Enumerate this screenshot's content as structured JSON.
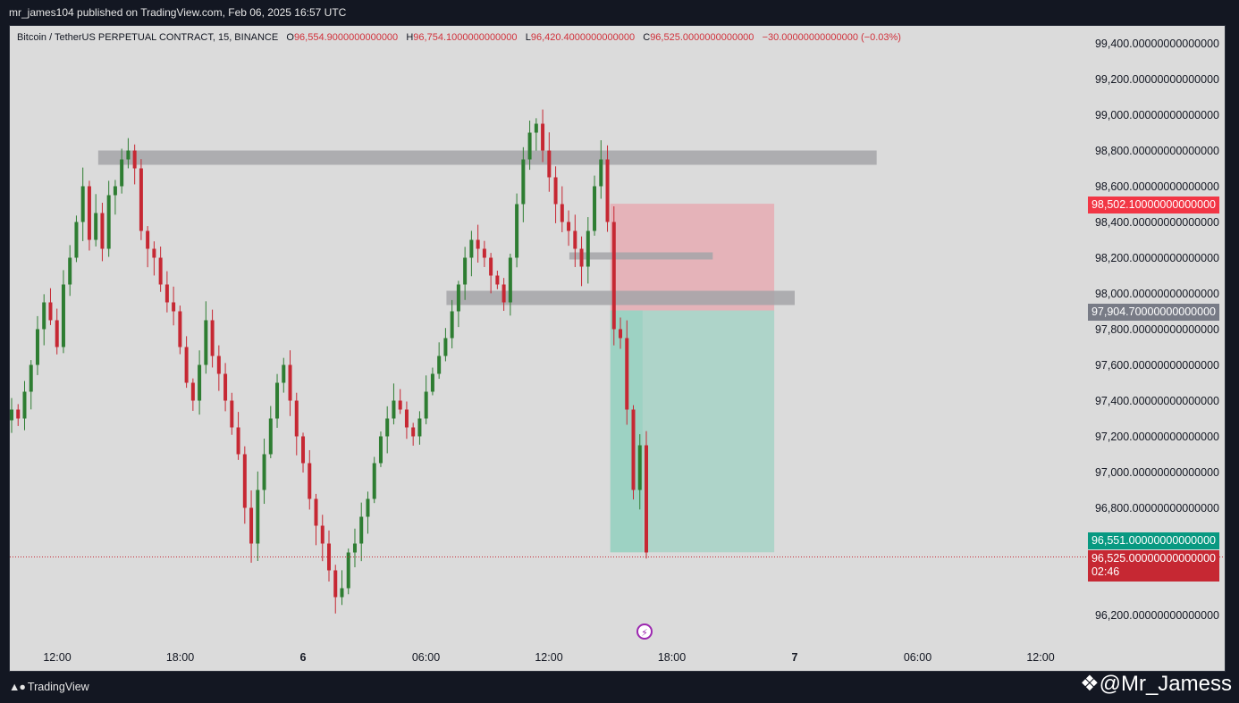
{
  "header": {
    "publish_line": "mr_james104 published on TradingView.com, Feb 06, 2025 16:57 UTC"
  },
  "legend": {
    "symbol": "Bitcoin / TetherUS PERPETUAL CONTRACT, 15, BINANCE",
    "o_label": "O",
    "o": "96,554.9000000000000",
    "h_label": "H",
    "h": "96,754.1000000000000",
    "l_label": "L",
    "l": "96,420.4000000000000",
    "c_label": "C",
    "c": "96,525.0000000000000",
    "change": "−30.00000000000000 (−0.03%)"
  },
  "price_tags": {
    "stop": "98,502.10000000000000",
    "entry": "97,904.70000000000000",
    "target": "96,551.00000000000000",
    "last": "96,525.00000000000000",
    "countdown": "02:46"
  },
  "colors": {
    "up": "#2e7d32",
    "down": "#c62833",
    "stop_zone": "#e8a6ae",
    "target_zone": "#8fcfbd",
    "level": "#a4a4a8",
    "stop_tag": "#f23645",
    "entry_tag": "#787b86",
    "target_tag": "#089981",
    "last_tag": "#c62833"
  },
  "footer": {
    "brand": "TradingView",
    "handle": "@Mr_Jamess"
  },
  "chart_data": {
    "type": "candlestick",
    "symbol": "BTCUSDT.P",
    "timeframe": "15",
    "y_ticks": [
      "99,400.00000000000000",
      "99,200.00000000000000",
      "99,000.00000000000000",
      "98,800.00000000000000",
      "98,600.00000000000000",
      "98,400.00000000000000",
      "98,200.00000000000000",
      "98,000.00000000000000",
      "97,800.00000000000000",
      "97,600.00000000000000",
      "97,400.00000000000000",
      "97,200.00000000000000",
      "97,000.00000000000000",
      "96,800.00000000000000",
      "96,200.00000000000000"
    ],
    "y_tick_values": [
      99400,
      99200,
      99000,
      98800,
      98600,
      98400,
      98200,
      98000,
      97800,
      97600,
      97400,
      97200,
      97000,
      96800,
      96200
    ],
    "x_ticks": [
      "12:00",
      "18:00",
      "6",
      "06:00",
      "12:00",
      "18:00",
      "7",
      "06:00",
      "12:00"
    ],
    "x_tick_bold": [
      false,
      false,
      true,
      false,
      false,
      false,
      true,
      false,
      false
    ],
    "ylim": [
      96100,
      99500
    ],
    "levels": [
      {
        "price": 98760,
        "from": "2025-02-05 14:00",
        "to": "2025-02-07 04:00"
      },
      {
        "price": 98190,
        "from": "2025-02-06 13:00",
        "to": "2025-02-06 20:00"
      },
      {
        "price": 97975,
        "from": "2025-02-06 07:00",
        "to": "2025-02-07 00:00"
      }
    ],
    "short_position": {
      "entry": 97904.7,
      "stop": 98502.1,
      "target": 96551.0,
      "from": "2025-02-06 15:00",
      "to": "2025-02-06 23:00"
    },
    "close_series": [
      97350,
      97300,
      97450,
      97600,
      97800,
      97950,
      97850,
      97700,
      98050,
      98200,
      98400,
      98600,
      98300,
      98450,
      98250,
      98550,
      98600,
      98750,
      98800,
      98700,
      98350,
      98250,
      98200,
      98050,
      97950,
      97900,
      97700,
      97500,
      97400,
      97600,
      97850,
      97650,
      97550,
      97400,
      97250,
      97100,
      96800,
      96600,
      96900,
      97100,
      97300,
      97500,
      97600,
      97400,
      97200,
      97050,
      96850,
      96700,
      96600,
      96450,
      96300,
      96350,
      96550,
      96600,
      96750,
      96850,
      97050,
      97200,
      97300,
      97400,
      97350,
      97250,
      97200,
      97300,
      97450,
      97550,
      97650,
      97750,
      97900,
      98050,
      98200,
      98300,
      98250,
      98200,
      98100,
      98050,
      97950,
      98200,
      98500,
      98750,
      98900,
      98950,
      98800,
      98650,
      98500,
      98400,
      98350,
      98250,
      98150,
      98350,
      98600,
      98750,
      98400,
      97800,
      97750,
      97350,
      96900,
      97150,
      96550
    ]
  }
}
